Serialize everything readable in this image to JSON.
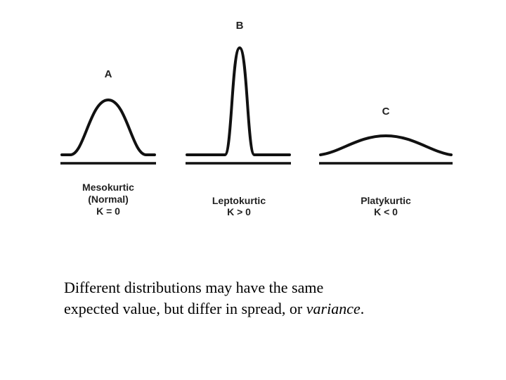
{
  "panels": [
    {
      "letter": "A",
      "caption_lines": [
        "Mesokurtic",
        "(Normal)",
        "K = 0"
      ]
    },
    {
      "letter": "B",
      "caption_lines": [
        "Leptokurtic",
        "K > 0"
      ]
    },
    {
      "letter": "C",
      "caption_lines": [
        "Platykurtic",
        "K < 0"
      ]
    }
  ],
  "text": {
    "line1": "Different distributions may have the same",
    "line2_prefix": "expected value, but differ in spread, or ",
    "line2_emphasis": "variance",
    "line2_suffix": "."
  }
}
